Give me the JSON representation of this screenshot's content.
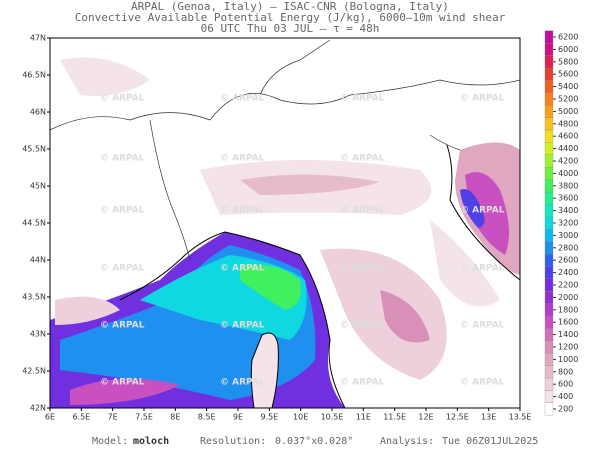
{
  "header": {
    "line1": "ARPAL (Genoa, Italy)  –  ISAC-CNR (Bologna, Italy)",
    "line2": "Convective Available Potential Energy (J/kg), 6000–10m wind shear",
    "line3": "06 UTC Thu 03 JUL  –  τ = 48h"
  },
  "map": {
    "watermark": "© ARPAL",
    "lonlim": [
      6,
      13.5
    ],
    "latlim": [
      42,
      47
    ],
    "lon_ticks": [
      {
        "value": 6,
        "label": "6E"
      },
      {
        "value": 6.5,
        "label": "6.5E"
      },
      {
        "value": 7,
        "label": "7E"
      },
      {
        "value": 7.5,
        "label": "7.5E"
      },
      {
        "value": 8,
        "label": "8E"
      },
      {
        "value": 8.5,
        "label": "8.5E"
      },
      {
        "value": 9,
        "label": "9E"
      },
      {
        "value": 9.5,
        "label": "9.5E"
      },
      {
        "value": 10,
        "label": "10E"
      },
      {
        "value": 10.5,
        "label": "10.5E"
      },
      {
        "value": 11,
        "label": "11E"
      },
      {
        "value": 11.5,
        "label": "11.5E"
      },
      {
        "value": 12,
        "label": "12E"
      },
      {
        "value": 12.5,
        "label": "12.5E"
      },
      {
        "value": 13,
        "label": "13E"
      },
      {
        "value": 13.5,
        "label": "13.5E"
      }
    ],
    "lat_ticks": [
      {
        "value": 42,
        "label": "42N"
      },
      {
        "value": 42.5,
        "label": "42.5N"
      },
      {
        "value": 43,
        "label": "43N"
      },
      {
        "value": 43.5,
        "label": "43.5N"
      },
      {
        "value": 44,
        "label": "44N"
      },
      {
        "value": 44.5,
        "label": "44.5N"
      },
      {
        "value": 45,
        "label": "45N"
      },
      {
        "value": 45.5,
        "label": "45.5N"
      },
      {
        "value": 46,
        "label": "46N"
      },
      {
        "value": 46.5,
        "label": "46.5N"
      },
      {
        "value": 47,
        "label": "47N"
      }
    ]
  },
  "colorbar": {
    "levels": [
      200,
      400,
      600,
      800,
      1000,
      1200,
      1400,
      1600,
      1800,
      2000,
      2200,
      2400,
      2600,
      2800,
      3000,
      3200,
      3400,
      3600,
      3800,
      4000,
      4200,
      4400,
      4600,
      4800,
      5000,
      5200,
      5400,
      5600,
      5800,
      6000,
      6200
    ],
    "colors": [
      "#ffffff",
      "#f4e4ea",
      "#edd0dc",
      "#e6bccd",
      "#dfa8c0",
      "#d890b8",
      "#d070b8",
      "#c850c0",
      "#b040c8",
      "#9030d0",
      "#7030e0",
      "#5040e8",
      "#3060f0",
      "#2090f0",
      "#10b8f0",
      "#10d8e0",
      "#10e8c0",
      "#20f090",
      "#40f060",
      "#70f040",
      "#a0f030",
      "#d0f020",
      "#f0e020",
      "#f8c020",
      "#f8a020",
      "#f88020",
      "#f06020",
      "#e84030",
      "#e02050",
      "#d01080",
      "#c010a0"
    ]
  },
  "footer": {
    "model_label": "Model:",
    "model": "moloch",
    "resolution_label": "Resolution:",
    "resolution": "0.037°x0.028°",
    "analysis_label": "Analysis:",
    "analysis": "Tue 06Z01JUL2025"
  }
}
